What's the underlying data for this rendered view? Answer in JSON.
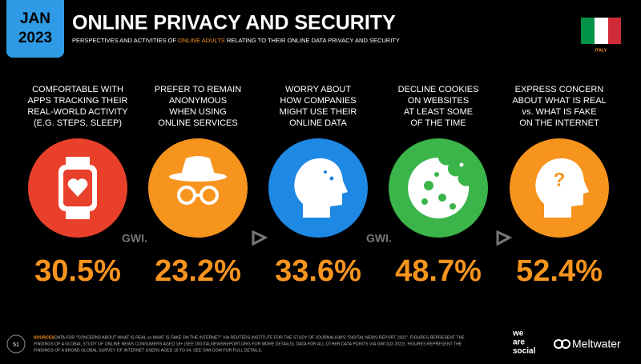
{
  "header": {
    "month": "JAN",
    "year": "2023",
    "title": "ONLINE PRIVACY AND SECURITY",
    "subtitle": [
      "PERSPECTIVES AND ACTIVITIES OF ",
      "ONLINE ADULTS",
      " RELATING TO THEIR ONLINE DATA PRIVACY AND SECURITY"
    ],
    "country": "ITALY"
  },
  "stats": [
    {
      "label": [
        "COMFORTABLE WITH",
        "APPS TRACKING THEIR",
        "REAL-WORLD ACTIVITY",
        "(E.G. STEPS, SLEEP)"
      ],
      "value": "30.5%"
    },
    {
      "label": [
        "PREFER TO REMAIN",
        "ANONYMOUS",
        "WHEN USING",
        "ONLINE SERVICES"
      ],
      "value": "23.2%"
    },
    {
      "label": [
        "WORRY ABOUT",
        "HOW COMPANIES",
        "MIGHT USE THEIR",
        "ONLINE DATA"
      ],
      "value": "33.6%"
    },
    {
      "label": [
        "DECLINE COOKIES",
        "ON WEBSITES",
        "AT LEAST SOME",
        "OF THE TIME"
      ],
      "value": "48.7%"
    },
    {
      "label": [
        "EXPRESS CONCERN",
        "ABOUT WHAT IS REAL",
        "vs. WHAT IS FAKE",
        "ON THE INTERNET"
      ],
      "value": "52.4%"
    }
  ],
  "watermark": "GWI.",
  "footer": {
    "page": "51",
    "sources_title": "SOURCES:",
    "sources": [
      "DATA FOR \"CONCERNS ABOUT WHAT IS REAL vs WHAT IS FAKE ON THE INTERNET\" VIA REUTERS INSTITUTE FOR THE STUDY OF JOURNALISM'S \"DIGITAL NEWS REPORT 2021\". FIGURES REPRESENT THE",
      "FINDINGS OF A GLOBAL STUDY OF ONLINE NEWS CONSUMERS AGED 18+ (SEE DIGITALNEWSREPORT.ORG FOR MORE DETAILS). DATA FOR ALL OTHER DATA POINTS VIA GWI (Q3 2022). FIGURES REPRESENT THE",
      "FINDINGS OF A BROAD GLOBAL SURVEY OF INTERNET USERS AGED 16 TO 64. SEE GWI.COM FOR FULL DETAILS."
    ],
    "logo_1": [
      "we",
      "are",
      "social"
    ],
    "logo_2": "Meltwater"
  }
}
